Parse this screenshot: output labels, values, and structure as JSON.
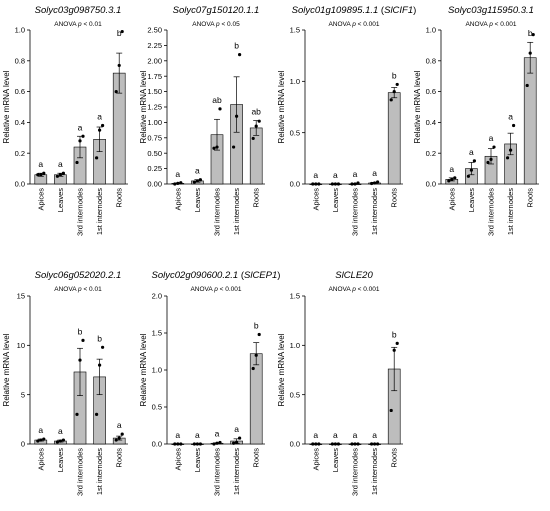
{
  "chart_data": [
    {
      "type": "bar",
      "title": {
        "main": "Solyc03g098750.3.1",
        "suffix": ""
      },
      "anova": "ANOVA p < 0.01",
      "ylabel": "Relative mRNA level",
      "categories": [
        "Apices",
        "Leaves",
        "3rd internodes",
        "1st internodes",
        "Roots"
      ],
      "values": [
        0.06,
        0.06,
        0.24,
        0.29,
        0.72
      ],
      "errors": [
        0.01,
        0.01,
        0.07,
        0.08,
        0.13
      ],
      "points": [
        [
          0.06,
          0.06,
          0.07
        ],
        [
          0.05,
          0.06,
          0.07
        ],
        [
          0.14,
          0.28,
          0.31
        ],
        [
          0.17,
          0.35,
          0.38
        ],
        [
          0.6,
          0.77,
          0.99
        ]
      ],
      "letters": [
        "a",
        "a",
        "a",
        "a",
        "b"
      ],
      "ylim": [
        0,
        1.0
      ],
      "yticks": [
        "0.0",
        "0.2",
        "0.4",
        "0.6",
        "0.8",
        "1.0"
      ]
    },
    {
      "type": "bar",
      "title": {
        "main": "Solyc07g150120.1.1",
        "suffix": ""
      },
      "anova": "ANOVA p < 0.05",
      "ylabel": "Relative mRNA level",
      "categories": [
        "Apices",
        "Leaves",
        "3rd internodes",
        "1st internodes",
        "Roots"
      ],
      "values": [
        0.01,
        0.05,
        0.8,
        1.29,
        0.91
      ],
      "errors": [
        0.005,
        0.02,
        0.25,
        0.45,
        0.12
      ],
      "points": [
        [
          0.0,
          0.01,
          0.02
        ],
        [
          0.03,
          0.05,
          0.07
        ],
        [
          0.58,
          0.6,
          1.22
        ],
        [
          0.6,
          1.1,
          2.1
        ],
        [
          0.74,
          0.94,
          1.02
        ]
      ],
      "letters": [
        "a",
        "a",
        "ab",
        "b",
        "ab"
      ],
      "ylim": [
        0,
        2.5
      ],
      "yticks": [
        "0.00",
        "0.25",
        "0.50",
        "0.75",
        "1.00",
        "1.25",
        "1.50",
        "1.75",
        "2.00",
        "2.25",
        "2.50"
      ]
    },
    {
      "type": "bar",
      "title": {
        "main": "Solyc01g109895.1.1",
        "suffix": " (SlCIF1)"
      },
      "anova": "ANOVA p < 0.001",
      "ylabel": "Relative mRNA level",
      "categories": [
        "Apices",
        "Leaves",
        "3rd internodes",
        "1st internodes",
        "Roots"
      ],
      "values": [
        0.0,
        0.0,
        0.0,
        0.01,
        0.89
      ],
      "errors": [
        0.002,
        0.002,
        0.003,
        0.006,
        0.05
      ],
      "points": [
        [
          0.0,
          0.0,
          0.0
        ],
        [
          0.0,
          0.0,
          0.0
        ],
        [
          0.0,
          0.0,
          0.01
        ],
        [
          0.005,
          0.01,
          0.02
        ],
        [
          0.82,
          0.9,
          0.97
        ]
      ],
      "letters": [
        "a",
        "a",
        "a",
        "a",
        "b"
      ],
      "ylim": [
        0,
        1.5
      ],
      "yticks": [
        "0.0",
        "0.5",
        "1.0",
        "1.5"
      ]
    },
    {
      "type": "bar",
      "title": {
        "main": "Solyc03g115950.3.1",
        "suffix": ""
      },
      "anova": "ANOVA p < 0.001",
      "ylabel": "Relative mRNA level",
      "categories": [
        "Apices",
        "Leaves",
        "3rd internodes",
        "1st internodes",
        "Roots"
      ],
      "values": [
        0.03,
        0.1,
        0.18,
        0.26,
        0.82
      ],
      "errors": [
        0.01,
        0.04,
        0.05,
        0.07,
        0.1
      ],
      "points": [
        [
          0.02,
          0.03,
          0.04
        ],
        [
          0.05,
          0.09,
          0.15
        ],
        [
          0.14,
          0.16,
          0.24
        ],
        [
          0.17,
          0.22,
          0.38
        ],
        [
          0.64,
          0.85,
          0.97
        ]
      ],
      "letters": [
        "a",
        "a",
        "a",
        "a",
        "b"
      ],
      "ylim": [
        0,
        1.0
      ],
      "yticks": [
        "0.0",
        "0.2",
        "0.4",
        "0.6",
        "0.8",
        "1.0"
      ]
    },
    {
      "type": "bar",
      "title": {
        "main": "Solyc06g052020.2.1",
        "suffix": ""
      },
      "anova": "ANOVA p < 0.01",
      "ylabel": "Relative mRNA level",
      "categories": [
        "Apices",
        "Leaves",
        "3rd internodes",
        "1st internodes",
        "Roots"
      ],
      "values": [
        0.4,
        0.3,
        7.3,
        6.8,
        0.6
      ],
      "errors": [
        0.1,
        0.1,
        2.4,
        1.8,
        0.2
      ],
      "points": [
        [
          0.3,
          0.4,
          0.5
        ],
        [
          0.2,
          0.3,
          0.4
        ],
        [
          3.0,
          8.5,
          10.5
        ],
        [
          3.0,
          8.0,
          9.8
        ],
        [
          0.4,
          0.6,
          1.0
        ]
      ],
      "letters": [
        "a",
        "a",
        "b",
        "b",
        "a"
      ],
      "ylim": [
        0,
        15
      ],
      "yticks": [
        "0",
        "5",
        "10",
        "15"
      ]
    },
    {
      "type": "bar",
      "title": {
        "main": "Solyc02g090600.2.1",
        "suffix": " (SlCEP1)"
      },
      "anova": "ANOVA p < 0.001",
      "ylabel": "Relative mRNA level",
      "categories": [
        "Apices",
        "Leaves",
        "3rd internodes",
        "1st internodes",
        "Roots"
      ],
      "values": [
        0.0,
        0.0,
        0.01,
        0.04,
        1.22
      ],
      "errors": [
        0.002,
        0.002,
        0.005,
        0.03,
        0.15
      ],
      "points": [
        [
          0.0,
          0.0,
          0.0
        ],
        [
          0.0,
          0.0,
          0.0
        ],
        [
          0.0,
          0.01,
          0.02
        ],
        [
          0.01,
          0.02,
          0.08
        ],
        [
          1.02,
          1.2,
          1.48
        ]
      ],
      "letters": [
        "a",
        "a",
        "a",
        "a",
        "b"
      ],
      "ylim": [
        0,
        2.0
      ],
      "yticks": [
        "0.0",
        "0.5",
        "1.0",
        "1.5",
        "2.0"
      ]
    },
    {
      "type": "bar",
      "title": {
        "main": "SlCLE20",
        "suffix": ""
      },
      "anova": "ANOVA p < 0.001",
      "ylabel": "Relative mRNA level",
      "categories": [
        "Apices",
        "Leaves",
        "3rd internodes",
        "1st internodes",
        "Roots"
      ],
      "values": [
        0.0,
        0.0,
        0.0,
        0.0,
        0.76
      ],
      "errors": [
        0.001,
        0.001,
        0.001,
        0.001,
        0.22
      ],
      "points": [
        [
          0.0,
          0.0,
          0.0
        ],
        [
          0.0,
          0.0,
          0.0
        ],
        [
          0.0,
          0.0,
          0.0
        ],
        [
          0.0,
          0.0,
          0.0
        ],
        [
          0.34,
          0.95,
          1.02
        ]
      ],
      "letters": [
        "a",
        "a",
        "a",
        "a",
        "b"
      ],
      "ylim": [
        0,
        1.5
      ],
      "yticks": [
        "0.0",
        "0.5",
        "1.0",
        "1.5"
      ]
    }
  ]
}
